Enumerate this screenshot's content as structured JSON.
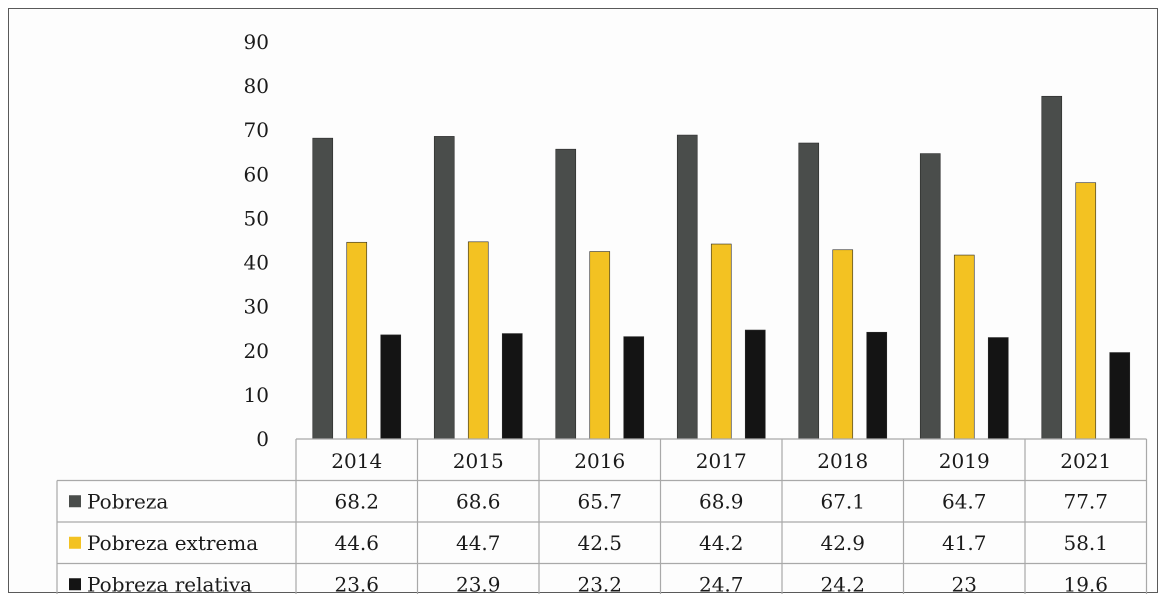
{
  "chart_data": {
    "type": "bar",
    "categories": [
      "2014",
      "2015",
      "2016",
      "2017",
      "2018",
      "2019",
      "2021"
    ],
    "series": [
      {
        "name": "Pobreza",
        "values": [
          68.2,
          68.6,
          65.7,
          68.9,
          67.1,
          64.7,
          77.7
        ],
        "value_labels": [
          "68.2",
          "68.6",
          "65.7",
          "68.9",
          "67.1",
          "64.7",
          "77.7"
        ],
        "color": "#4a4d4b"
      },
      {
        "name": "Pobreza extrema",
        "values": [
          44.6,
          44.7,
          42.5,
          44.2,
          42.9,
          41.7,
          58.1
        ],
        "value_labels": [
          "44.6",
          "44.7",
          "42.5",
          "44.2",
          "42.9",
          "41.7",
          "58.1"
        ],
        "color": "#f3c222"
      },
      {
        "name": "Pobreza relativa",
        "values": [
          23.6,
          23.9,
          23.2,
          24.7,
          24.2,
          23,
          19.6
        ],
        "value_labels": [
          "23.6",
          "23.9",
          "23.2",
          "24.7",
          "24.2",
          "23",
          "19.6"
        ],
        "color": "#141414"
      }
    ],
    "ylim": [
      0,
      90
    ],
    "yticks": [
      "0",
      "10",
      "20",
      "30",
      "40",
      "50",
      "60",
      "70",
      "80",
      "90"
    ],
    "title": "",
    "xlabel": "",
    "ylabel": "",
    "grid": false,
    "legend": "data-table-left"
  }
}
